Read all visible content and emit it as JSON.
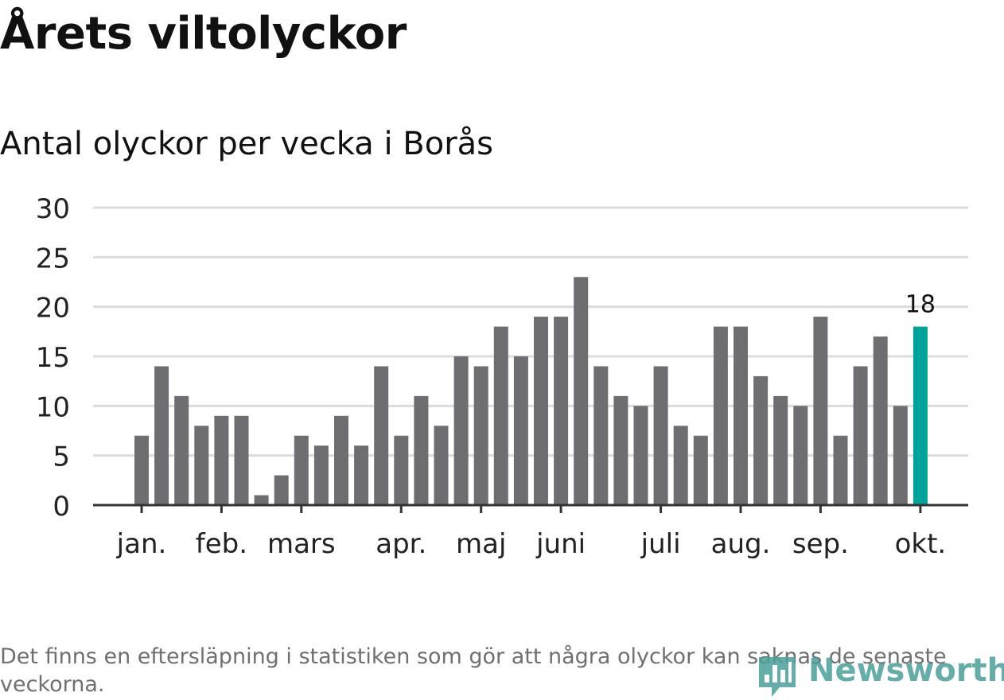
{
  "header": {
    "title": "Årets viltolyckor",
    "subtitle": "Antal olyckor per vecka i Borås"
  },
  "footnote": "Det finns en eftersläpning i statistiken som gör att några olyckor kan saknas de senaste veckorna.",
  "brand": {
    "name": "Newsworthy",
    "color": "#4a9f9a"
  },
  "chart_data": {
    "type": "bar",
    "title": "Årets viltolyckor",
    "subtitle": "Antal olyckor per vecka i Borås",
    "xlabel": "",
    "ylabel": "",
    "ylim": [
      0,
      30
    ],
    "yticks": [
      0,
      5,
      10,
      15,
      20,
      25,
      30
    ],
    "grid": true,
    "values": [
      7,
      14,
      11,
      8,
      9,
      9,
      1,
      3,
      7,
      6,
      9,
      6,
      14,
      7,
      11,
      8,
      15,
      14,
      18,
      15,
      19,
      19,
      23,
      14,
      11,
      10,
      14,
      8,
      7,
      18,
      18,
      13,
      11,
      10,
      19,
      7,
      14,
      17,
      10,
      18
    ],
    "highlight_index": 39,
    "highlight_label": "18",
    "bar_color": "#6e6d72",
    "highlight_color": "#00a39a",
    "month_labels": [
      {
        "label": "jan.",
        "bar": 0
      },
      {
        "label": "feb.",
        "bar": 4
      },
      {
        "label": "mars",
        "bar": 8
      },
      {
        "label": "apr.",
        "bar": 13
      },
      {
        "label": "maj",
        "bar": 17
      },
      {
        "label": "juni",
        "bar": 21
      },
      {
        "label": "juli",
        "bar": 26
      },
      {
        "label": "aug.",
        "bar": 30
      },
      {
        "label": "sep.",
        "bar": 34
      },
      {
        "label": "okt.",
        "bar": 39
      }
    ]
  }
}
